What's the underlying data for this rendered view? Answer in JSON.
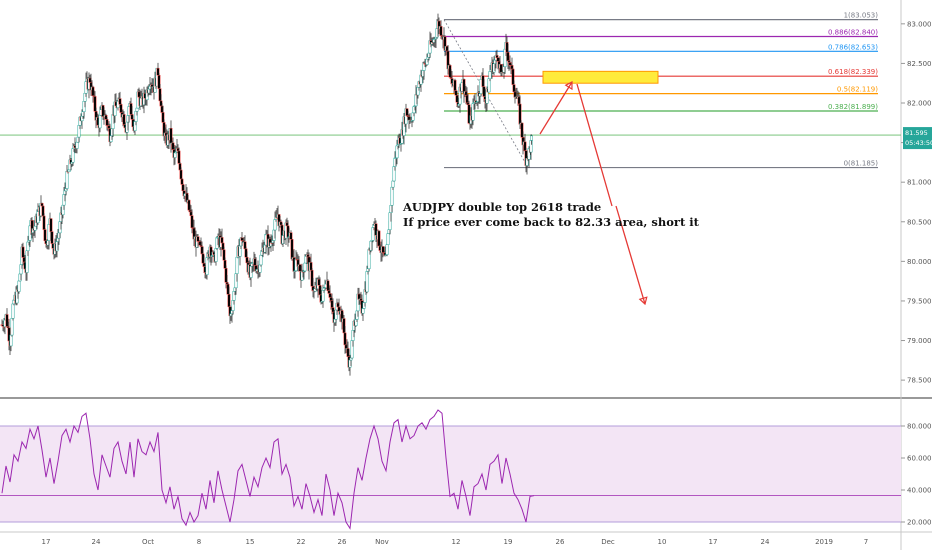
{
  "chart_data": {
    "type": "candlestick",
    "instrument": "AUDJPY",
    "price_axis": {
      "range": [
        78.35,
        83.2
      ],
      "ticks": [
        "83.000",
        "82.500",
        "82.000",
        "81.500",
        "81.000",
        "80.500",
        "80.000",
        "79.500",
        "79.000",
        "78.500"
      ],
      "tick_values": [
        83.0,
        82.5,
        82.0,
        81.5,
        81.0,
        80.5,
        80.0,
        79.5,
        79.0,
        78.5
      ]
    },
    "current_price": {
      "value": "81.595",
      "time": "05:43:50"
    },
    "reference_price": 81.595,
    "x_axis": {
      "ticks": [
        "17",
        "24",
        "Oct",
        "8",
        "15",
        "22",
        "26",
        "Nov",
        "12",
        "19",
        "26",
        "Dec",
        "10",
        "17",
        "24",
        "2019",
        "7"
      ]
    },
    "fibonacci": {
      "top_label": "1(83.053)",
      "bottom_label": "0(81.185)",
      "levels": [
        {
          "label": "1(83.053)",
          "value": 83.053,
          "color": "#787b86"
        },
        {
          "label": "0.886(82.840)",
          "value": 82.84,
          "color": "#9c27b0"
        },
        {
          "label": "0.786(82.653)",
          "value": 82.653,
          "color": "#2196f3"
        },
        {
          "label": "0.618(82.339)",
          "value": 82.339,
          "color": "#e53935"
        },
        {
          "label": "0.5(82.119)",
          "value": 82.119,
          "color": "#ff9800"
        },
        {
          "label": "0.382(81.899)",
          "value": 81.899,
          "color": "#4caf50"
        },
        {
          "label": "0(81.185)",
          "value": 81.185,
          "color": "#787b86"
        }
      ]
    },
    "annotation": {
      "line1": "AUDJPY double top 2618 trade",
      "line2": "If price ever come back to 82.33 area, short it",
      "zone_low": 82.25,
      "zone_high": 82.4,
      "zone_color": "#ffeb3b"
    },
    "rsi": {
      "axis_ticks": [
        "80.0000",
        "60.0000",
        "40.0000",
        "20.0000"
      ],
      "axis_values": [
        80,
        60,
        40,
        20
      ],
      "range": [
        15,
        95
      ],
      "upper_band": 80,
      "lower_band": 20,
      "current": 36.5,
      "line_color": "#9c27b0",
      "band_fill": "#f3e5f5"
    },
    "candles": {
      "colors": {
        "up": "#26a69a",
        "down": "#ef5350",
        "body_up": "#ffffff",
        "body_down": "#000000"
      },
      "path_points": [
        [
          0,
          79.2
        ],
        [
          4,
          79.3
        ],
        [
          8,
          79.0
        ],
        [
          12,
          79.5
        ],
        [
          16,
          79.6
        ],
        [
          20,
          80.1
        ],
        [
          24,
          79.9
        ],
        [
          28,
          80.5
        ],
        [
          32,
          80.4
        ],
        [
          36,
          80.6
        ],
        [
          40,
          80.7
        ],
        [
          44,
          80.2
        ],
        [
          48,
          80.5
        ],
        [
          52,
          80.1
        ],
        [
          56,
          80.3
        ],
        [
          60,
          80.6
        ],
        [
          64,
          81.0
        ],
        [
          68,
          81.2
        ],
        [
          72,
          81.4
        ],
        [
          76,
          81.6
        ],
        [
          80,
          81.9
        ],
        [
          84,
          82.2
        ],
        [
          88,
          82.3
        ],
        [
          92,
          82.0
        ],
        [
          96,
          81.7
        ],
        [
          100,
          81.9
        ],
        [
          104,
          81.8
        ],
        [
          108,
          81.6
        ],
        [
          112,
          81.9
        ],
        [
          116,
          82.0
        ],
        [
          120,
          81.9
        ],
        [
          124,
          81.7
        ],
        [
          128,
          82.0
        ],
        [
          132,
          81.6
        ],
        [
          136,
          82.1
        ],
        [
          140,
          82.0
        ],
        [
          144,
          82.1
        ],
        [
          148,
          82.3
        ],
        [
          152,
          82.2
        ],
        [
          156,
          82.4
        ],
        [
          160,
          81.8
        ],
        [
          164,
          81.5
        ],
        [
          168,
          81.6
        ],
        [
          172,
          81.3
        ],
        [
          176,
          81.4
        ],
        [
          180,
          81.0
        ],
        [
          184,
          80.8
        ],
        [
          188,
          80.6
        ],
        [
          192,
          80.3
        ],
        [
          196,
          80.2
        ],
        [
          200,
          80.1
        ],
        [
          204,
          79.9
        ],
        [
          208,
          80.2
        ],
        [
          212,
          80.0
        ],
        [
          216,
          80.3
        ],
        [
          220,
          80.2
        ],
        [
          224,
          79.8
        ],
        [
          228,
          79.3
        ],
        [
          232,
          79.6
        ],
        [
          236,
          80.1
        ],
        [
          240,
          80.3
        ],
        [
          244,
          80.1
        ],
        [
          248,
          79.8
        ],
        [
          252,
          80.0
        ],
        [
          256,
          79.9
        ],
        [
          260,
          80.1
        ],
        [
          264,
          80.3
        ],
        [
          268,
          80.2
        ],
        [
          272,
          80.4
        ],
        [
          276,
          80.6
        ],
        [
          280,
          80.3
        ],
        [
          284,
          80.4
        ],
        [
          288,
          80.3
        ],
        [
          292,
          79.9
        ],
        [
          296,
          80.0
        ],
        [
          300,
          79.8
        ],
        [
          304,
          80.1
        ],
        [
          308,
          79.9
        ],
        [
          312,
          79.6
        ],
        [
          316,
          79.7
        ],
        [
          320,
          79.5
        ],
        [
          324,
          79.8
        ],
        [
          328,
          79.6
        ],
        [
          332,
          79.2
        ],
        [
          336,
          79.5
        ],
        [
          340,
          79.3
        ],
        [
          344,
          78.9
        ],
        [
          348,
          78.7
        ],
        [
          352,
          79.2
        ],
        [
          356,
          79.5
        ],
        [
          360,
          79.4
        ],
        [
          364,
          79.7
        ],
        [
          368,
          80.2
        ],
        [
          372,
          80.5
        ],
        [
          376,
          80.3
        ],
        [
          380,
          80.1
        ],
        [
          384,
          80.0
        ],
        [
          388,
          80.6
        ],
        [
          392,
          81.2
        ],
        [
          396,
          81.5
        ],
        [
          400,
          81.6
        ],
        [
          404,
          81.9
        ],
        [
          408,
          81.8
        ],
        [
          412,
          81.9
        ],
        [
          416,
          82.2
        ],
        [
          420,
          82.4
        ],
        [
          424,
          82.5
        ],
        [
          428,
          82.7
        ],
        [
          432,
          82.8
        ],
        [
          436,
          83.0
        ],
        [
          440,
          82.9
        ],
        [
          444,
          82.7
        ],
        [
          448,
          82.3
        ],
        [
          452,
          82.2
        ],
        [
          456,
          82.0
        ],
        [
          460,
          82.3
        ],
        [
          464,
          82.1
        ],
        [
          468,
          81.7
        ],
        [
          472,
          82.0
        ],
        [
          476,
          82.1
        ],
        [
          480,
          82.3
        ],
        [
          484,
          82.0
        ],
        [
          488,
          82.4
        ],
        [
          492,
          82.5
        ],
        [
          496,
          82.6
        ],
        [
          500,
          82.3
        ],
        [
          504,
          82.7
        ],
        [
          508,
          82.5
        ],
        [
          512,
          82.2
        ],
        [
          516,
          82.0
        ],
        [
          520,
          81.6
        ],
        [
          524,
          81.3
        ],
        [
          528,
          81.4
        ],
        [
          530,
          81.55
        ]
      ]
    },
    "rsi_points": [
      [
        0,
        38
      ],
      [
        4,
        55
      ],
      [
        8,
        45
      ],
      [
        12,
        62
      ],
      [
        16,
        58
      ],
      [
        20,
        70
      ],
      [
        24,
        66
      ],
      [
        28,
        78
      ],
      [
        32,
        72
      ],
      [
        36,
        80
      ],
      [
        40,
        65
      ],
      [
        44,
        48
      ],
      [
        48,
        60
      ],
      [
        52,
        44
      ],
      [
        56,
        58
      ],
      [
        60,
        74
      ],
      [
        64,
        78
      ],
      [
        68,
        70
      ],
      [
        72,
        80
      ],
      [
        76,
        76
      ],
      [
        80,
        86
      ],
      [
        84,
        88
      ],
      [
        88,
        72
      ],
      [
        92,
        50
      ],
      [
        96,
        40
      ],
      [
        100,
        62
      ],
      [
        104,
        55
      ],
      [
        108,
        48
      ],
      [
        112,
        66
      ],
      [
        116,
        70
      ],
      [
        120,
        58
      ],
      [
        124,
        50
      ],
      [
        128,
        70
      ],
      [
        132,
        48
      ],
      [
        136,
        72
      ],
      [
        140,
        64
      ],
      [
        144,
        62
      ],
      [
        148,
        70
      ],
      [
        152,
        64
      ],
      [
        156,
        76
      ],
      [
        160,
        40
      ],
      [
        164,
        32
      ],
      [
        168,
        42
      ],
      [
        172,
        28
      ],
      [
        176,
        36
      ],
      [
        180,
        22
      ],
      [
        184,
        18
      ],
      [
        188,
        26
      ],
      [
        192,
        20
      ],
      [
        196,
        24
      ],
      [
        200,
        38
      ],
      [
        204,
        28
      ],
      [
        208,
        46
      ],
      [
        212,
        32
      ],
      [
        216,
        52
      ],
      [
        220,
        40
      ],
      [
        224,
        30
      ],
      [
        228,
        20
      ],
      [
        232,
        34
      ],
      [
        236,
        52
      ],
      [
        240,
        56
      ],
      [
        244,
        46
      ],
      [
        248,
        36
      ],
      [
        252,
        48
      ],
      [
        256,
        42
      ],
      [
        260,
        54
      ],
      [
        264,
        60
      ],
      [
        268,
        54
      ],
      [
        272,
        70
      ],
      [
        276,
        72
      ],
      [
        280,
        50
      ],
      [
        284,
        56
      ],
      [
        288,
        48
      ],
      [
        292,
        30
      ],
      [
        296,
        36
      ],
      [
        300,
        28
      ],
      [
        304,
        44
      ],
      [
        308,
        36
      ],
      [
        312,
        26
      ],
      [
        316,
        34
      ],
      [
        320,
        24
      ],
      [
        324,
        50
      ],
      [
        328,
        40
      ],
      [
        332,
        24
      ],
      [
        336,
        38
      ],
      [
        340,
        32
      ],
      [
        344,
        20
      ],
      [
        348,
        16
      ],
      [
        352,
        38
      ],
      [
        356,
        54
      ],
      [
        360,
        46
      ],
      [
        364,
        60
      ],
      [
        368,
        72
      ],
      [
        372,
        80
      ],
      [
        376,
        72
      ],
      [
        380,
        58
      ],
      [
        384,
        52
      ],
      [
        388,
        70
      ],
      [
        392,
        82
      ],
      [
        396,
        84
      ],
      [
        400,
        70
      ],
      [
        404,
        80
      ],
      [
        408,
        72
      ],
      [
        412,
        74
      ],
      [
        416,
        80
      ],
      [
        420,
        82
      ],
      [
        424,
        78
      ],
      [
        428,
        84
      ],
      [
        432,
        86
      ],
      [
        436,
        90
      ],
      [
        440,
        88
      ],
      [
        444,
        60
      ],
      [
        448,
        36
      ],
      [
        452,
        38
      ],
      [
        456,
        28
      ],
      [
        460,
        46
      ],
      [
        464,
        36
      ],
      [
        468,
        24
      ],
      [
        472,
        42
      ],
      [
        476,
        44
      ],
      [
        480,
        50
      ],
      [
        484,
        40
      ],
      [
        488,
        56
      ],
      [
        492,
        58
      ],
      [
        496,
        62
      ],
      [
        500,
        44
      ],
      [
        504,
        60
      ],
      [
        508,
        50
      ],
      [
        512,
        38
      ],
      [
        516,
        34
      ],
      [
        520,
        28
      ],
      [
        524,
        20
      ],
      [
        528,
        36
      ],
      [
        532,
        36.5
      ]
    ]
  }
}
